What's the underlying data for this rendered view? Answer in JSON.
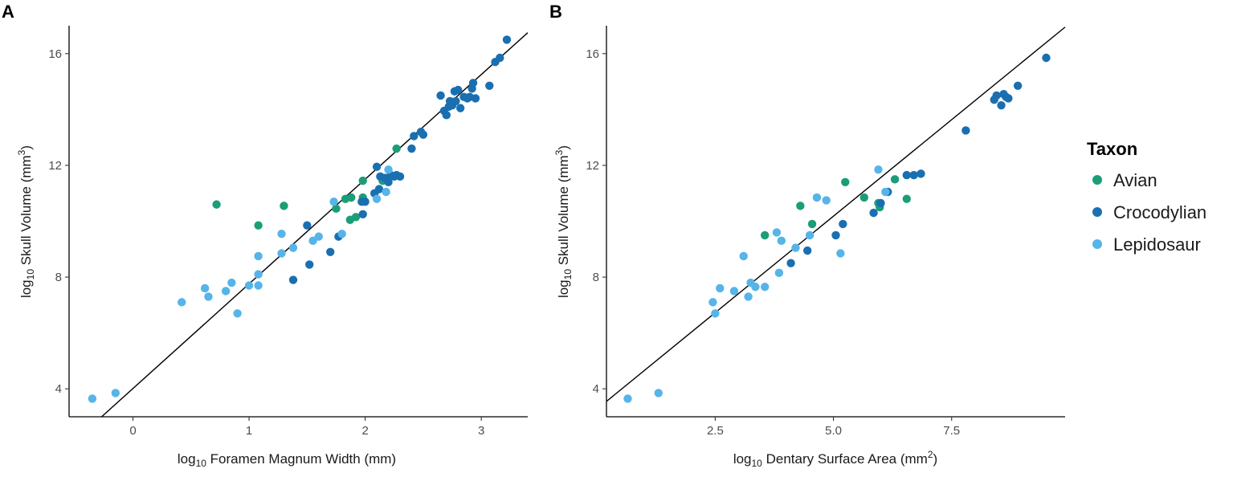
{
  "legend": {
    "title": "Taxon",
    "entries": [
      {
        "name": "Avian",
        "color": "#1b9e77"
      },
      {
        "name": "Crocodylian",
        "color": "#1a6fb0"
      },
      {
        "name": "Lepidosaur",
        "color": "#56b4e9"
      }
    ]
  },
  "colors": {
    "Avian": "#1b9e77",
    "Crocodylian": "#1a6fb0",
    "Lepidosaur": "#56b4e9",
    "axis": "#000000",
    "fit_line": "#000000"
  },
  "chart_data": [
    {
      "type": "scatter",
      "panel": "A",
      "xlabel_prefix": "log",
      "xlabel_sub": "10",
      "xlabel_rest": " Foramen Magnum Width (mm)",
      "ylabel_prefix": "log",
      "ylabel_sub": "10",
      "ylabel_rest": " Skull Volume (mm",
      "ylabel_sup": "3",
      "ylabel_end": ")",
      "xlim": [
        -0.55,
        3.4
      ],
      "ylim": [
        3.0,
        17.0
      ],
      "xticks": [
        0,
        1,
        2,
        3
      ],
      "xtick_labels": [
        "0",
        "1",
        "2",
        "3"
      ],
      "yticks": [
        4,
        8,
        12,
        16
      ],
      "ytick_labels": [
        "4",
        "8",
        "12",
        "16"
      ],
      "fit_line": {
        "x": [
          -0.27,
          3.4
        ],
        "y": [
          3.0,
          16.75
        ]
      },
      "series": [
        {
          "name": "Avian",
          "points": [
            [
              0.72,
              10.6
            ],
            [
              1.08,
              9.85
            ],
            [
              1.3,
              10.55
            ],
            [
              1.75,
              10.45
            ],
            [
              1.83,
              10.8
            ],
            [
              1.88,
              10.85
            ],
            [
              1.87,
              10.05
            ],
            [
              1.92,
              10.15
            ],
            [
              1.98,
              11.45
            ],
            [
              1.98,
              10.85
            ],
            [
              2.15,
              11.45
            ],
            [
              2.18,
              11.5
            ],
            [
              2.27,
              12.6
            ]
          ]
        },
        {
          "name": "Crocodylian",
          "points": [
            [
              1.38,
              7.9
            ],
            [
              1.5,
              9.85
            ],
            [
              1.52,
              8.45
            ],
            [
              1.7,
              8.9
            ],
            [
              1.77,
              9.45
            ],
            [
              1.97,
              10.7
            ],
            [
              1.98,
              10.25
            ],
            [
              2.0,
              10.7
            ],
            [
              2.08,
              11.0
            ],
            [
              2.1,
              11.95
            ],
            [
              2.12,
              11.15
            ],
            [
              2.13,
              11.6
            ],
            [
              2.17,
              11.55
            ],
            [
              2.2,
              11.4
            ],
            [
              2.22,
              11.65
            ],
            [
              2.25,
              11.6
            ],
            [
              2.27,
              11.65
            ],
            [
              2.3,
              11.6
            ],
            [
              2.4,
              12.6
            ],
            [
              2.42,
              13.05
            ],
            [
              2.48,
              13.2
            ],
            [
              2.5,
              13.1
            ],
            [
              2.65,
              14.5
            ],
            [
              2.68,
              13.95
            ],
            [
              2.7,
              13.8
            ],
            [
              2.72,
              14.1
            ],
            [
              2.73,
              14.3
            ],
            [
              2.75,
              14.15
            ],
            [
              2.77,
              14.65
            ],
            [
              2.78,
              14.3
            ],
            [
              2.8,
              14.7
            ],
            [
              2.82,
              14.05
            ],
            [
              2.85,
              14.45
            ],
            [
              2.88,
              14.4
            ],
            [
              2.9,
              14.45
            ],
            [
              2.92,
              14.75
            ],
            [
              2.93,
              14.95
            ],
            [
              2.95,
              14.4
            ],
            [
              3.07,
              14.85
            ],
            [
              3.12,
              15.7
            ],
            [
              3.16,
              15.85
            ],
            [
              3.22,
              16.5
            ]
          ]
        },
        {
          "name": "Lepidosaur",
          "points": [
            [
              -0.35,
              3.65
            ],
            [
              -0.15,
              3.85
            ],
            [
              0.42,
              7.1
            ],
            [
              0.62,
              7.6
            ],
            [
              0.65,
              7.3
            ],
            [
              0.8,
              7.5
            ],
            [
              0.85,
              7.8
            ],
            [
              0.9,
              6.7
            ],
            [
              1.0,
              7.7
            ],
            [
              1.08,
              8.75
            ],
            [
              1.08,
              8.1
            ],
            [
              1.08,
              7.7
            ],
            [
              1.28,
              8.85
            ],
            [
              1.28,
              9.55
            ],
            [
              1.38,
              9.05
            ],
            [
              1.55,
              9.3
            ],
            [
              1.6,
              9.45
            ],
            [
              1.73,
              10.7
            ],
            [
              1.8,
              9.55
            ],
            [
              2.1,
              10.8
            ],
            [
              2.18,
              11.05
            ],
            [
              2.2,
              11.85
            ]
          ]
        }
      ]
    },
    {
      "type": "scatter",
      "panel": "B",
      "xlabel_prefix": "log",
      "xlabel_sub": "10",
      "xlabel_rest": " Dentary Surface Area (mm",
      "xlabel_sup": "2",
      "xlabel_end": ")",
      "ylabel_prefix": "log",
      "ylabel_sub": "10",
      "ylabel_rest": " Skull Volume (mm",
      "ylabel_sup": "3",
      "ylabel_end": ")",
      "xlim": [
        0.2,
        9.9
      ],
      "ylim": [
        3.0,
        17.0
      ],
      "xticks": [
        2.5,
        5.0,
        7.5
      ],
      "xtick_labels": [
        "2.5",
        "5.0",
        "7.5"
      ],
      "yticks": [
        4,
        8,
        12,
        16
      ],
      "ytick_labels": [
        "4",
        "8",
        "12",
        "16"
      ],
      "fit_line": {
        "x": [
          0.2,
          9.9
        ],
        "y": [
          3.55,
          16.95
        ]
      },
      "series": [
        {
          "name": "Avian",
          "points": [
            [
              3.55,
              9.5
            ],
            [
              4.3,
              10.55
            ],
            [
              4.55,
              9.9
            ],
            [
              5.25,
              11.4
            ],
            [
              5.65,
              10.85
            ],
            [
              5.95,
              10.65
            ],
            [
              5.98,
              10.5
            ],
            [
              6.3,
              11.5
            ],
            [
              6.55,
              10.8
            ]
          ]
        },
        {
          "name": "Crocodylian",
          "points": [
            [
              4.1,
              8.5
            ],
            [
              4.45,
              8.95
            ],
            [
              5.05,
              9.5
            ],
            [
              5.2,
              9.9
            ],
            [
              5.85,
              10.3
            ],
            [
              6.0,
              10.65
            ],
            [
              6.15,
              11.05
            ],
            [
              6.55,
              11.65
            ],
            [
              6.7,
              11.65
            ],
            [
              6.85,
              11.7
            ],
            [
              7.8,
              13.25
            ],
            [
              8.4,
              14.35
            ],
            [
              8.45,
              14.5
            ],
            [
              8.55,
              14.15
            ],
            [
              8.6,
              14.55
            ],
            [
              8.65,
              14.45
            ],
            [
              8.7,
              14.4
            ],
            [
              8.9,
              14.85
            ],
            [
              9.5,
              15.85
            ]
          ]
        },
        {
          "name": "Lepidosaur",
          "points": [
            [
              0.65,
              3.65
            ],
            [
              1.3,
              3.85
            ],
            [
              2.45,
              7.1
            ],
            [
              2.5,
              6.7
            ],
            [
              2.6,
              7.6
            ],
            [
              2.9,
              7.5
            ],
            [
              3.1,
              8.75
            ],
            [
              3.2,
              7.3
            ],
            [
              3.25,
              7.8
            ],
            [
              3.35,
              7.65
            ],
            [
              3.55,
              7.65
            ],
            [
              3.8,
              9.6
            ],
            [
              3.85,
              8.15
            ],
            [
              3.9,
              9.3
            ],
            [
              4.2,
              9.05
            ],
            [
              4.5,
              9.5
            ],
            [
              4.65,
              10.85
            ],
            [
              4.85,
              10.75
            ],
            [
              5.15,
              8.85
            ],
            [
              5.95,
              11.85
            ],
            [
              6.1,
              11.05
            ]
          ]
        }
      ]
    }
  ]
}
